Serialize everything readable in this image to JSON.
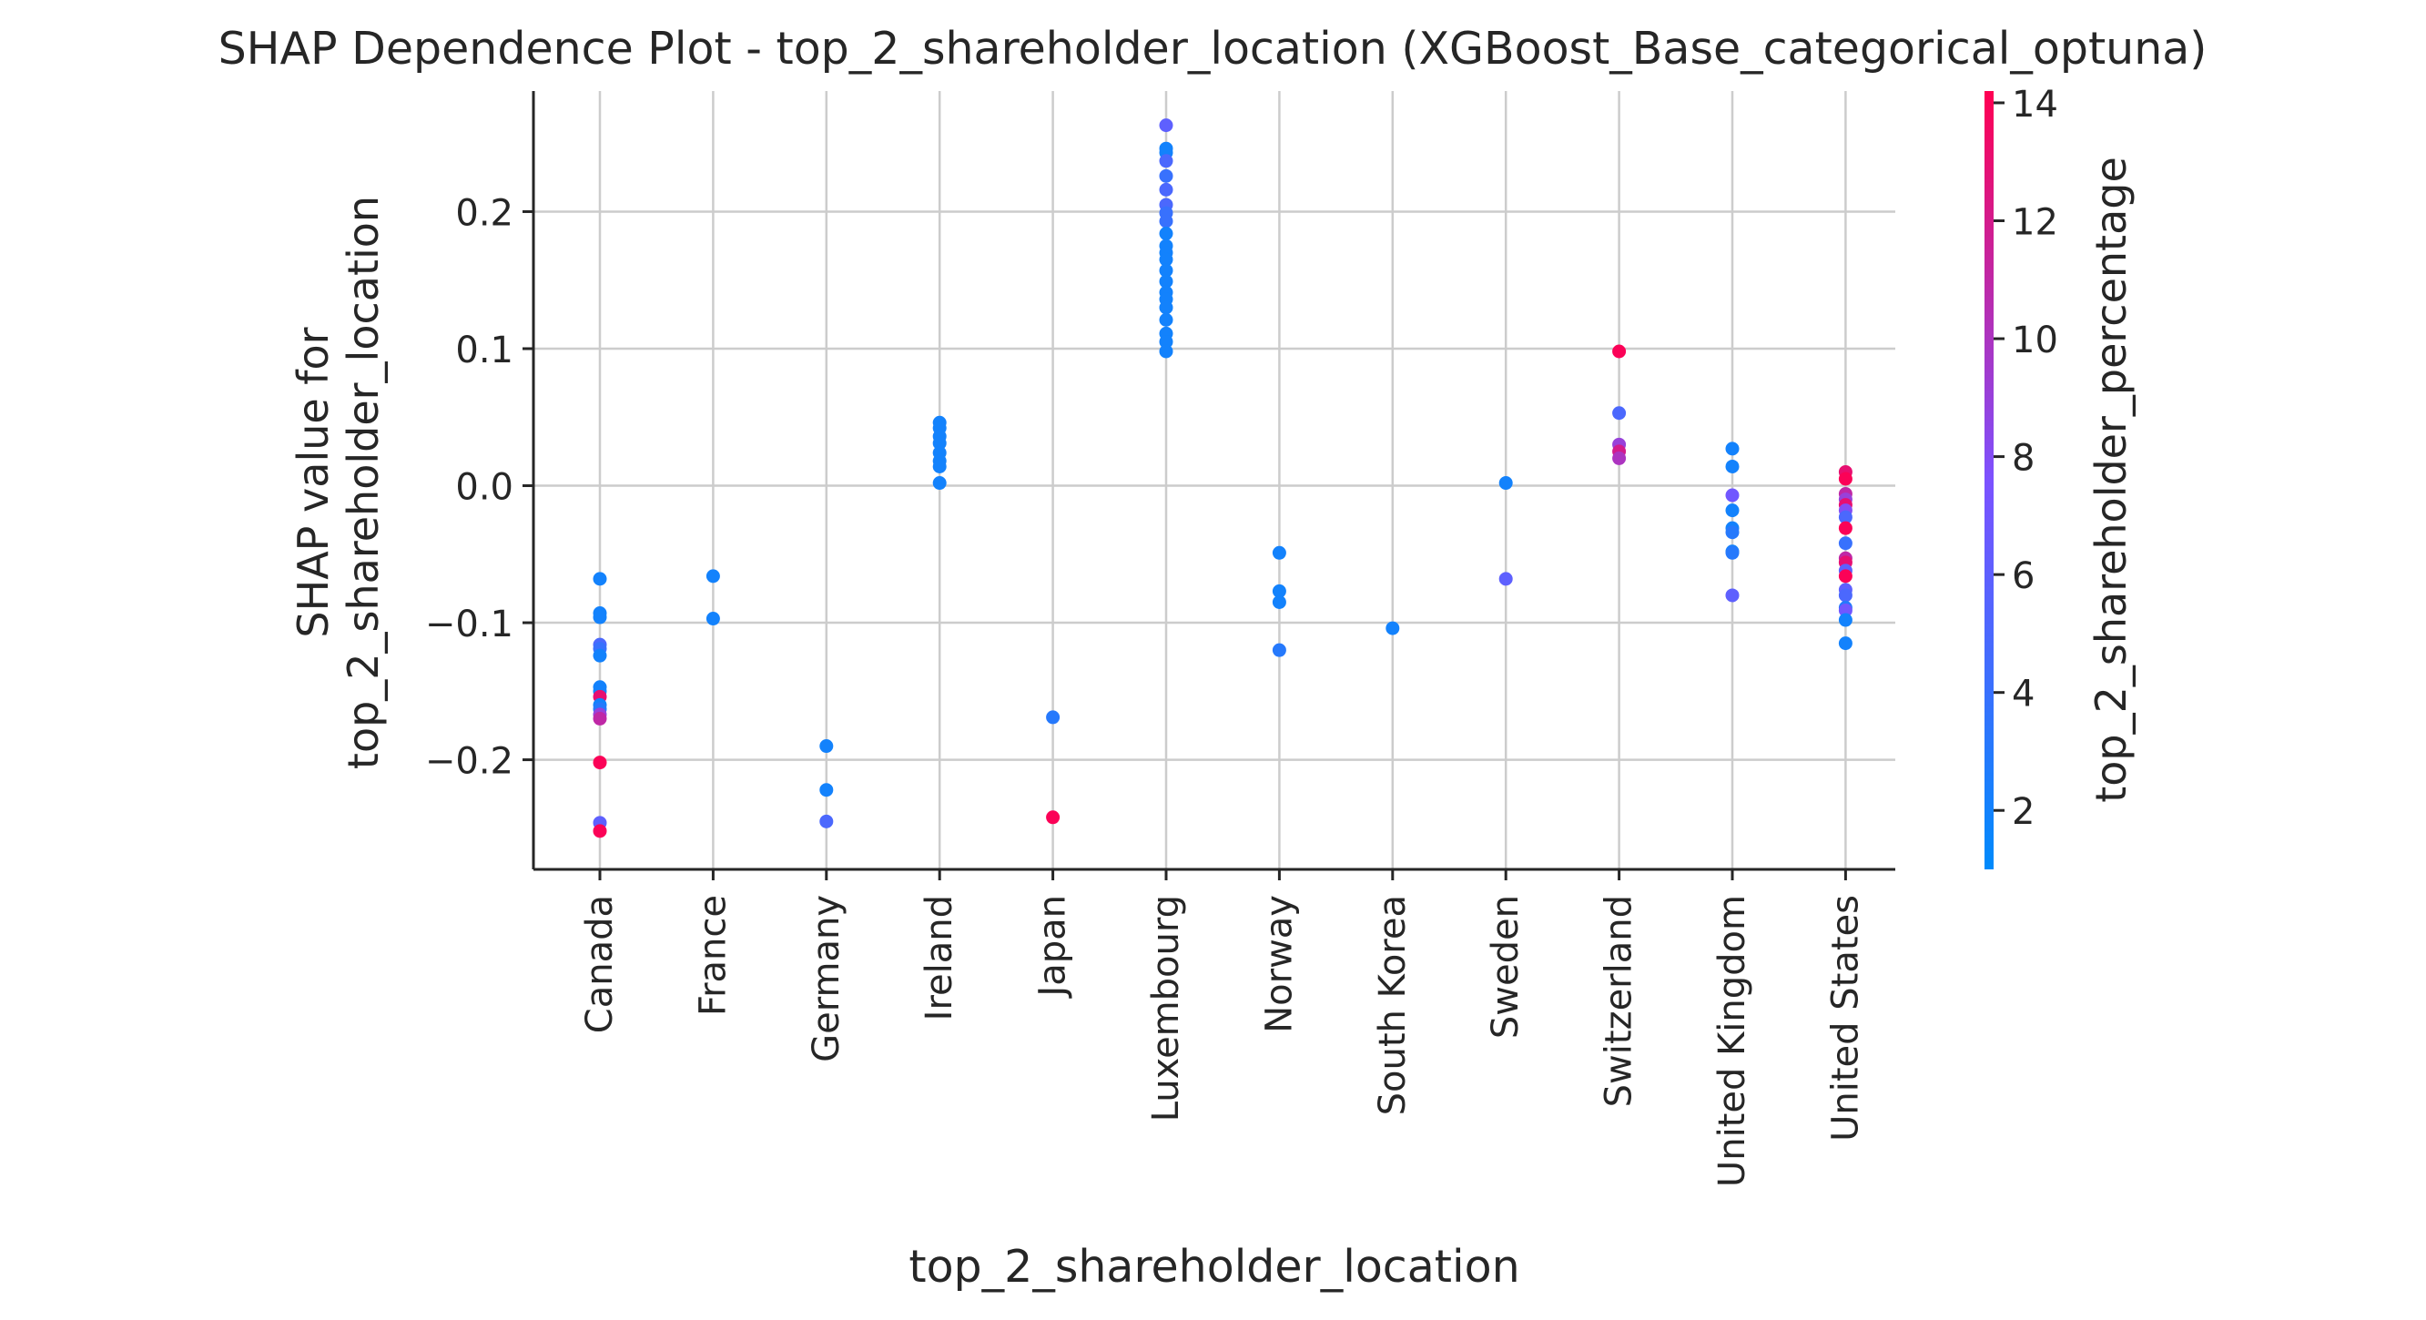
{
  "chart_data": {
    "type": "scatter",
    "title": "SHAP Dependence Plot - top_2_shareholder_location (XGBoost_Base_categorical_optuna)",
    "xlabel": "top_2_shareholder_location",
    "ylabel_lines": [
      "SHAP value for",
      "top_2_shareholder_location"
    ],
    "categories": [
      "Canada",
      "France",
      "Germany",
      "Ireland",
      "Japan",
      "Luxembourg",
      "Norway",
      "South Korea",
      "Sweden",
      "Switzerland",
      "United Kingdom",
      "United States"
    ],
    "y_ticks": [
      0.2,
      0.1,
      0.0,
      -0.1,
      -0.2
    ],
    "y_tick_labels": [
      "0.2",
      "0.1",
      "0.0",
      "−0.1",
      "−0.2"
    ],
    "ylim": [
      -0.28,
      0.288
    ],
    "grid": true,
    "colorbar": {
      "label": "top_2_shareholder_percentage",
      "range": [
        1,
        14.2
      ],
      "ticks": [
        2,
        4,
        6,
        8,
        10,
        12,
        14
      ],
      "tick_labels": [
        "2",
        "4",
        "6",
        "8",
        "10",
        "12",
        "14"
      ],
      "low_color": "#008afb",
      "mid_color": "#7c52ff",
      "high_color": "#ff0052"
    },
    "points": [
      {
        "x": "Canada",
        "y": -0.068,
        "c": 2
      },
      {
        "x": "Canada",
        "y": -0.093,
        "c": 2
      },
      {
        "x": "Canada",
        "y": -0.096,
        "c": 2
      },
      {
        "x": "Canada",
        "y": -0.116,
        "c": 5
      },
      {
        "x": "Canada",
        "y": -0.119,
        "c": 4
      },
      {
        "x": "Canada",
        "y": -0.124,
        "c": 2
      },
      {
        "x": "Canada",
        "y": -0.147,
        "c": 2
      },
      {
        "x": "Canada",
        "y": -0.15,
        "c": 2
      },
      {
        "x": "Canada",
        "y": -0.154,
        "c": 13
      },
      {
        "x": "Canada",
        "y": -0.16,
        "c": 2
      },
      {
        "x": "Canada",
        "y": -0.163,
        "c": 3
      },
      {
        "x": "Canada",
        "y": -0.167,
        "c": 9
      },
      {
        "x": "Canada",
        "y": -0.17,
        "c": 11
      },
      {
        "x": "Canada",
        "y": -0.202,
        "c": 14
      },
      {
        "x": "Canada",
        "y": -0.246,
        "c": 6
      },
      {
        "x": "Canada",
        "y": -0.252,
        "c": 14
      },
      {
        "x": "France",
        "y": -0.066,
        "c": 2
      },
      {
        "x": "France",
        "y": -0.097,
        "c": 2
      },
      {
        "x": "Germany",
        "y": -0.19,
        "c": 2
      },
      {
        "x": "Germany",
        "y": -0.222,
        "c": 2
      },
      {
        "x": "Germany",
        "y": -0.245,
        "c": 5
      },
      {
        "x": "Ireland",
        "y": 0.046,
        "c": 2
      },
      {
        "x": "Ireland",
        "y": 0.042,
        "c": 2
      },
      {
        "x": "Ireland",
        "y": 0.036,
        "c": 2
      },
      {
        "x": "Ireland",
        "y": 0.031,
        "c": 2
      },
      {
        "x": "Ireland",
        "y": 0.024,
        "c": 2
      },
      {
        "x": "Ireland",
        "y": 0.018,
        "c": 2
      },
      {
        "x": "Ireland",
        "y": 0.014,
        "c": 2
      },
      {
        "x": "Ireland",
        "y": 0.002,
        "c": 2
      },
      {
        "x": "Japan",
        "y": -0.169,
        "c": 3
      },
      {
        "x": "Japan",
        "y": -0.242,
        "c": 14
      },
      {
        "x": "Luxembourg",
        "y": 0.263,
        "c": 6
      },
      {
        "x": "Luxembourg",
        "y": 0.246,
        "c": 2
      },
      {
        "x": "Luxembourg",
        "y": 0.243,
        "c": 2
      },
      {
        "x": "Luxembourg",
        "y": 0.237,
        "c": 5
      },
      {
        "x": "Luxembourg",
        "y": 0.226,
        "c": 4
      },
      {
        "x": "Luxembourg",
        "y": 0.216,
        "c": 5
      },
      {
        "x": "Luxembourg",
        "y": 0.205,
        "c": 5
      },
      {
        "x": "Luxembourg",
        "y": 0.199,
        "c": 4
      },
      {
        "x": "Luxembourg",
        "y": 0.193,
        "c": 4
      },
      {
        "x": "Luxembourg",
        "y": 0.184,
        "c": 2
      },
      {
        "x": "Luxembourg",
        "y": 0.175,
        "c": 2
      },
      {
        "x": "Luxembourg",
        "y": 0.17,
        "c": 2
      },
      {
        "x": "Luxembourg",
        "y": 0.165,
        "c": 2
      },
      {
        "x": "Luxembourg",
        "y": 0.157,
        "c": 2
      },
      {
        "x": "Luxembourg",
        "y": 0.149,
        "c": 2
      },
      {
        "x": "Luxembourg",
        "y": 0.141,
        "c": 2
      },
      {
        "x": "Luxembourg",
        "y": 0.136,
        "c": 2
      },
      {
        "x": "Luxembourg",
        "y": 0.13,
        "c": 2
      },
      {
        "x": "Luxembourg",
        "y": 0.121,
        "c": 2
      },
      {
        "x": "Luxembourg",
        "y": 0.111,
        "c": 2
      },
      {
        "x": "Luxembourg",
        "y": 0.105,
        "c": 2
      },
      {
        "x": "Luxembourg",
        "y": 0.098,
        "c": 2
      },
      {
        "x": "Norway",
        "y": -0.049,
        "c": 2
      },
      {
        "x": "Norway",
        "y": -0.077,
        "c": 2
      },
      {
        "x": "Norway",
        "y": -0.085,
        "c": 2
      },
      {
        "x": "Norway",
        "y": -0.12,
        "c": 3
      },
      {
        "x": "South Korea",
        "y": -0.104,
        "c": 2
      },
      {
        "x": "Sweden",
        "y": 0.002,
        "c": 2
      },
      {
        "x": "Sweden",
        "y": -0.068,
        "c": 6
      },
      {
        "x": "Switzerland",
        "y": 0.098,
        "c": 14
      },
      {
        "x": "Switzerland",
        "y": 0.053,
        "c": 5
      },
      {
        "x": "Switzerland",
        "y": 0.03,
        "c": 9
      },
      {
        "x": "Switzerland",
        "y": 0.025,
        "c": 12
      },
      {
        "x": "Switzerland",
        "y": 0.02,
        "c": 10
      },
      {
        "x": "United Kingdom",
        "y": 0.027,
        "c": 2
      },
      {
        "x": "United Kingdom",
        "y": 0.014,
        "c": 2
      },
      {
        "x": "United Kingdom",
        "y": -0.007,
        "c": 7
      },
      {
        "x": "United Kingdom",
        "y": -0.018,
        "c": 2
      },
      {
        "x": "United Kingdom",
        "y": -0.031,
        "c": 2
      },
      {
        "x": "United Kingdom",
        "y": -0.034,
        "c": 3
      },
      {
        "x": "United Kingdom",
        "y": -0.048,
        "c": 2
      },
      {
        "x": "United Kingdom",
        "y": -0.049,
        "c": 3
      },
      {
        "x": "United Kingdom",
        "y": -0.08,
        "c": 6
      },
      {
        "x": "United States",
        "y": 0.01,
        "c": 13
      },
      {
        "x": "United States",
        "y": 0.005,
        "c": 14
      },
      {
        "x": "United States",
        "y": -0.006,
        "c": 11
      },
      {
        "x": "United States",
        "y": -0.01,
        "c": 9
      },
      {
        "x": "United States",
        "y": -0.014,
        "c": 13
      },
      {
        "x": "United States",
        "y": -0.018,
        "c": 8
      },
      {
        "x": "United States",
        "y": -0.023,
        "c": 5
      },
      {
        "x": "United States",
        "y": -0.031,
        "c": 14
      },
      {
        "x": "United States",
        "y": -0.042,
        "c": 4
      },
      {
        "x": "United States",
        "y": -0.053,
        "c": 11
      },
      {
        "x": "United States",
        "y": -0.056,
        "c": 13
      },
      {
        "x": "United States",
        "y": -0.062,
        "c": 6
      },
      {
        "x": "United States",
        "y": -0.066,
        "c": 14
      },
      {
        "x": "United States",
        "y": -0.076,
        "c": 6
      },
      {
        "x": "United States",
        "y": -0.08,
        "c": 5
      },
      {
        "x": "United States",
        "y": -0.089,
        "c": 3
      },
      {
        "x": "United States",
        "y": -0.091,
        "c": 7
      },
      {
        "x": "United States",
        "y": -0.098,
        "c": 2
      },
      {
        "x": "United States",
        "y": -0.115,
        "c": 2
      }
    ]
  }
}
